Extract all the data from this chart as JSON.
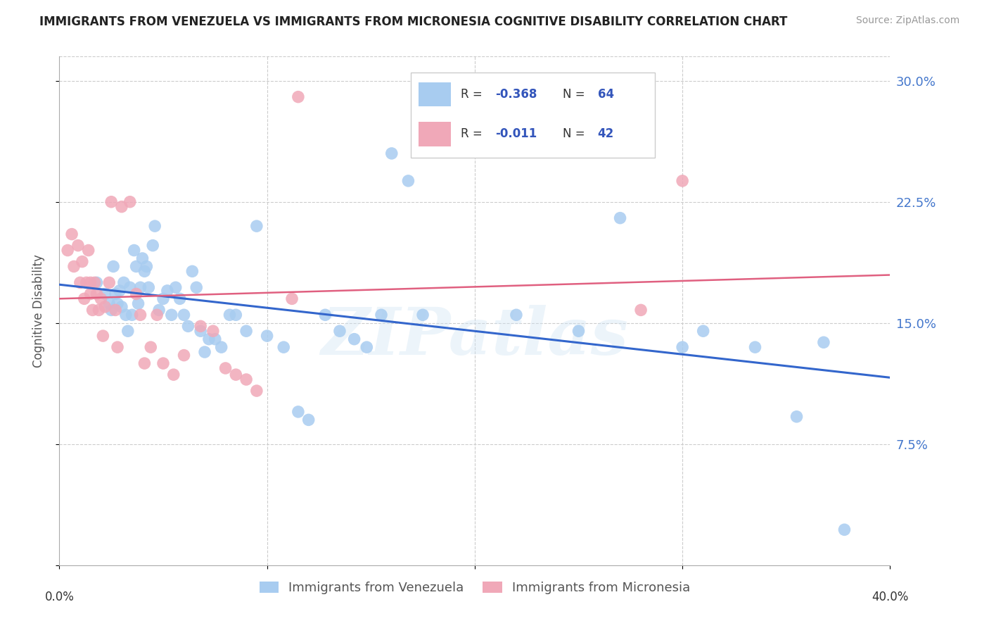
{
  "title": "IMMIGRANTS FROM VENEZUELA VS IMMIGRANTS FROM MICRONESIA COGNITIVE DISABILITY CORRELATION CHART",
  "source": "Source: ZipAtlas.com",
  "ylabel": "Cognitive Disability",
  "yticks": [
    0.0,
    0.075,
    0.15,
    0.225,
    0.3
  ],
  "ytick_labels": [
    "",
    "7.5%",
    "15.0%",
    "22.5%",
    "30.0%"
  ],
  "xmin": 0.0,
  "xmax": 0.4,
  "ymin": 0.0,
  "ymax": 0.315,
  "legend_blue_R": "-0.368",
  "legend_blue_N": "64",
  "legend_pink_R": "-0.011",
  "legend_pink_N": "42",
  "legend_blue_label": "Immigrants from Venezuela",
  "legend_pink_label": "Immigrants from Micronesia",
  "scatter_color_blue": "#A8CCF0",
  "scatter_color_pink": "#F0A8B8",
  "line_color_blue": "#3366CC",
  "line_color_pink": "#E06080",
  "watermark": "ZIPatlas",
  "blue_x": [
    0.018,
    0.022,
    0.024,
    0.025,
    0.026,
    0.027,
    0.028,
    0.029,
    0.03,
    0.031,
    0.032,
    0.033,
    0.034,
    0.035,
    0.036,
    0.037,
    0.038,
    0.039,
    0.04,
    0.041,
    0.042,
    0.043,
    0.045,
    0.046,
    0.048,
    0.05,
    0.052,
    0.054,
    0.056,
    0.058,
    0.06,
    0.062,
    0.064,
    0.066,
    0.068,
    0.07,
    0.072,
    0.075,
    0.078,
    0.082,
    0.085,
    0.09,
    0.095,
    0.1,
    0.108,
    0.115,
    0.12,
    0.128,
    0.135,
    0.142,
    0.148,
    0.155,
    0.16,
    0.168,
    0.175,
    0.22,
    0.25,
    0.27,
    0.3,
    0.31,
    0.335,
    0.355,
    0.368,
    0.378
  ],
  "blue_y": [
    0.175,
    0.168,
    0.162,
    0.158,
    0.185,
    0.168,
    0.162,
    0.17,
    0.16,
    0.175,
    0.155,
    0.145,
    0.172,
    0.155,
    0.195,
    0.185,
    0.162,
    0.172,
    0.19,
    0.182,
    0.185,
    0.172,
    0.198,
    0.21,
    0.158,
    0.165,
    0.17,
    0.155,
    0.172,
    0.165,
    0.155,
    0.148,
    0.182,
    0.172,
    0.145,
    0.132,
    0.14,
    0.14,
    0.135,
    0.155,
    0.155,
    0.145,
    0.21,
    0.142,
    0.135,
    0.095,
    0.09,
    0.155,
    0.145,
    0.14,
    0.135,
    0.155,
    0.255,
    0.238,
    0.155,
    0.155,
    0.145,
    0.215,
    0.135,
    0.145,
    0.135,
    0.092,
    0.138,
    0.022
  ],
  "pink_x": [
    0.004,
    0.006,
    0.007,
    0.009,
    0.01,
    0.011,
    0.012,
    0.013,
    0.014,
    0.015,
    0.015,
    0.016,
    0.017,
    0.018,
    0.019,
    0.02,
    0.021,
    0.022,
    0.024,
    0.025,
    0.027,
    0.028,
    0.03,
    0.034,
    0.037,
    0.039,
    0.041,
    0.044,
    0.047,
    0.05,
    0.055,
    0.06,
    0.068,
    0.074,
    0.08,
    0.085,
    0.09,
    0.095,
    0.112,
    0.115,
    0.28,
    0.3
  ],
  "pink_y": [
    0.195,
    0.205,
    0.185,
    0.198,
    0.175,
    0.188,
    0.165,
    0.175,
    0.195,
    0.168,
    0.175,
    0.158,
    0.175,
    0.168,
    0.158,
    0.165,
    0.142,
    0.16,
    0.175,
    0.225,
    0.158,
    0.135,
    0.222,
    0.225,
    0.168,
    0.155,
    0.125,
    0.135,
    0.155,
    0.125,
    0.118,
    0.13,
    0.148,
    0.145,
    0.122,
    0.118,
    0.115,
    0.108,
    0.165,
    0.29,
    0.158,
    0.238
  ]
}
